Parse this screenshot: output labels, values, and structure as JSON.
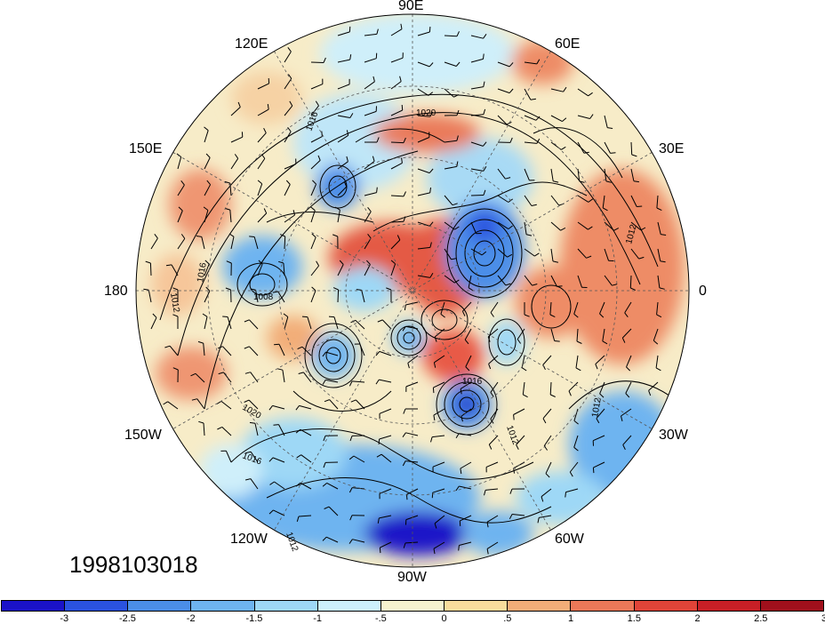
{
  "timestamp": "1998103018",
  "lon_labels": {
    "e90": "90E",
    "e60": "60E",
    "e30": "30E",
    "lon0": "0",
    "w30": "30W",
    "w60": "60W",
    "w90": "90W",
    "w120": "120W",
    "w150": "150W",
    "lon180": "180",
    "e150": "150E",
    "e120": "120E"
  },
  "contour_labels": [
    "1016",
    "1020",
    "1016",
    "1012",
    "1012",
    "1008",
    "1020",
    "1016",
    "1012",
    "1016",
    "1012",
    "1012"
  ],
  "colorbar": {
    "colors": [
      "#1a12c8",
      "#2a52e0",
      "#4b8ee8",
      "#6eb4f0",
      "#9ed8f6",
      "#ccf0fb",
      "#f6f3cf",
      "#f8dc9c",
      "#f2ad78",
      "#ec7858",
      "#e04438",
      "#c81f26",
      "#a0101c"
    ],
    "labels": [
      "-3",
      "-2.5",
      "-2",
      "-1.5",
      "-1",
      "-.5",
      "0",
      ".5",
      "1",
      "1.5",
      "2",
      "2.5",
      "3"
    ]
  }
}
